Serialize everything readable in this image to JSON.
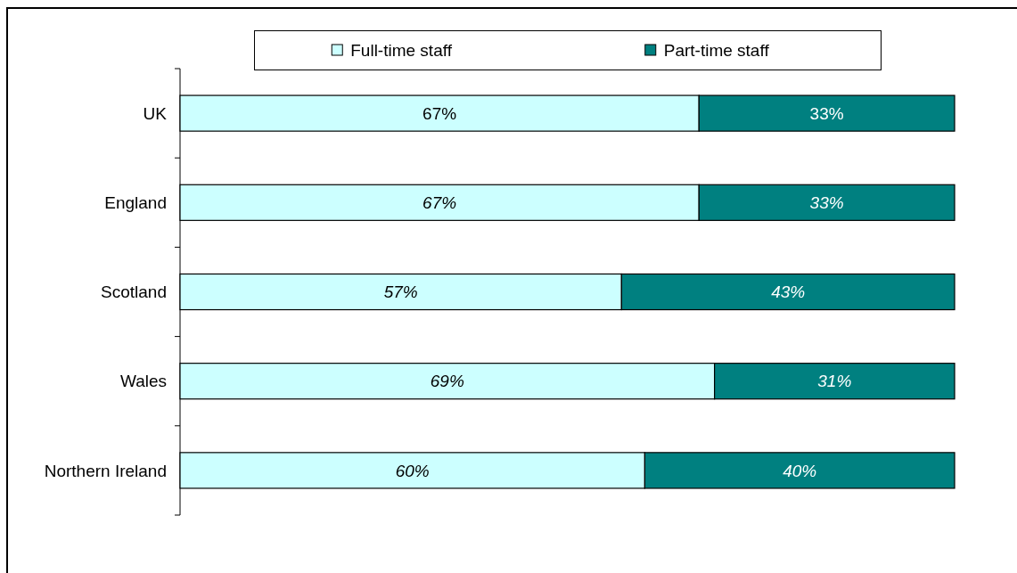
{
  "chart_data": {
    "type": "bar",
    "orientation": "horizontal",
    "stacked": true,
    "categories": [
      "UK",
      "England",
      "Scotland",
      "Wales",
      "Northern Ireland"
    ],
    "series": [
      {
        "name": "Full-time staff",
        "color": "#ccffff",
        "values": [
          67,
          67,
          57,
          69,
          60
        ],
        "value_labels": [
          "67%",
          "67%",
          "57%",
          "69%",
          "60%"
        ]
      },
      {
        "name": "Part-time staff",
        "color": "#008080",
        "values": [
          33,
          33,
          43,
          31,
          40
        ],
        "value_labels": [
          "33%",
          "33%",
          "43%",
          "31%",
          "40%"
        ]
      }
    ],
    "xlim": [
      0,
      100
    ],
    "legend": "top",
    "tick_labels": "y"
  }
}
